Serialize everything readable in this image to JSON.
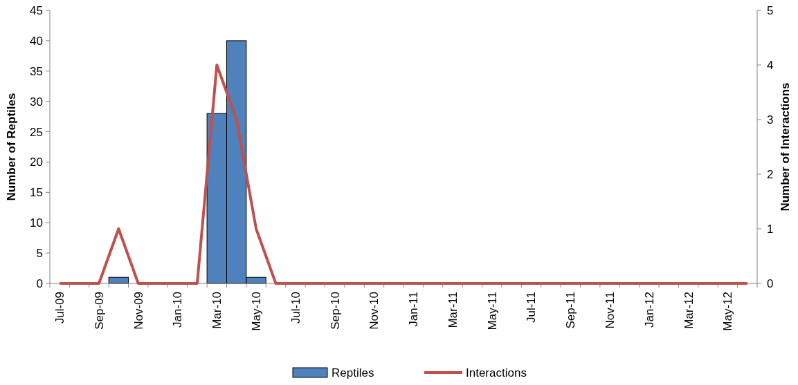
{
  "chart_data": {
    "type": "bar",
    "categories": [
      "Jul-09",
      null,
      "Sep-09",
      null,
      "Nov-09",
      null,
      "Jan-10",
      null,
      "Mar-10",
      null,
      "May-10",
      null,
      "Jul-10",
      null,
      "Sep-10",
      null,
      "Nov-10",
      null,
      "Jan-11",
      null,
      "Mar-11",
      null,
      "May-11",
      null,
      "Jul-11",
      null,
      "Sep-11",
      null,
      "Nov-11",
      null,
      "Jan-12",
      null,
      "Mar-12",
      null,
      "May-12",
      null
    ],
    "series": [
      {
        "name": "Reptiles",
        "color": "#4f81bd",
        "values": [
          0,
          0,
          0,
          1,
          0,
          0,
          0,
          0,
          28,
          40,
          1,
          0,
          0,
          0,
          0,
          0,
          0,
          0,
          0,
          0,
          0,
          0,
          0,
          0,
          0,
          0,
          0,
          0,
          0,
          0,
          0,
          0,
          0,
          0,
          0,
          0
        ]
      },
      {
        "name": "Interactions",
        "type": "line",
        "axis": "y2",
        "color": "#c0504d",
        "values": [
          0,
          0,
          0,
          1,
          0,
          0,
          0,
          0,
          4,
          3,
          1,
          0,
          0,
          0,
          0,
          0,
          0,
          0,
          0,
          0,
          0,
          0,
          0,
          0,
          0,
          0,
          0,
          0,
          0,
          0,
          0,
          0,
          0,
          0,
          0,
          0
        ]
      }
    ],
    "ylabel": "Number of Reptiles",
    "y2label": "Number of Interactions",
    "ylim": [
      0,
      45
    ],
    "yticks": [
      0,
      5,
      10,
      15,
      20,
      25,
      30,
      35,
      40,
      45
    ],
    "y2lim": [
      0,
      5
    ],
    "y2ticks": [
      0,
      1,
      2,
      3,
      4,
      5
    ],
    "grid": false,
    "legend": "bottom",
    "marker": "none"
  }
}
